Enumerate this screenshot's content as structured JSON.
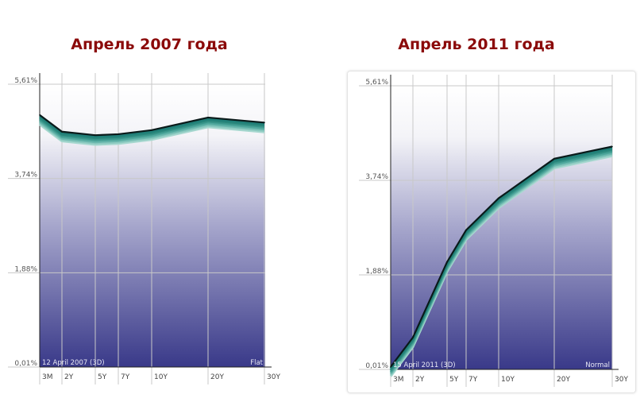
{
  "chart_data": [
    {
      "type": "line",
      "title": "Апрель 2007 года",
      "categories": [
        "3M",
        "2Y",
        "5Y",
        "7Y",
        "10Y",
        "20Y",
        "30Y"
      ],
      "values": [
        5.0,
        4.67,
        4.6,
        4.62,
        4.7,
        4.95,
        4.85
      ],
      "yticks": [
        "5,61%",
        "3,74%",
        "1,88%",
        "0,01%"
      ],
      "ylim": [
        0.01,
        5.61
      ],
      "date_label": "12 April 2007 (3D)",
      "shape_label": "Flat",
      "grid": true,
      "line_color": "#0a1a1a",
      "band_color": "#1f7f78"
    },
    {
      "type": "line",
      "title": "Апрель 2011 года",
      "categories": [
        "3M",
        "2Y",
        "5Y",
        "7Y",
        "10Y",
        "20Y",
        "30Y"
      ],
      "values": [
        0.06,
        0.64,
        2.13,
        2.76,
        3.39,
        4.17,
        4.41
      ],
      "yticks": [
        "5,61%",
        "3,74%",
        "1,88%",
        "0,01%"
      ],
      "ylim": [
        0.01,
        5.61
      ],
      "date_label": "15 April 2011 (3D)",
      "shape_label": "Normal",
      "grid": true,
      "line_color": "#0a1a1a",
      "band_color": "#1f7f78"
    }
  ]
}
